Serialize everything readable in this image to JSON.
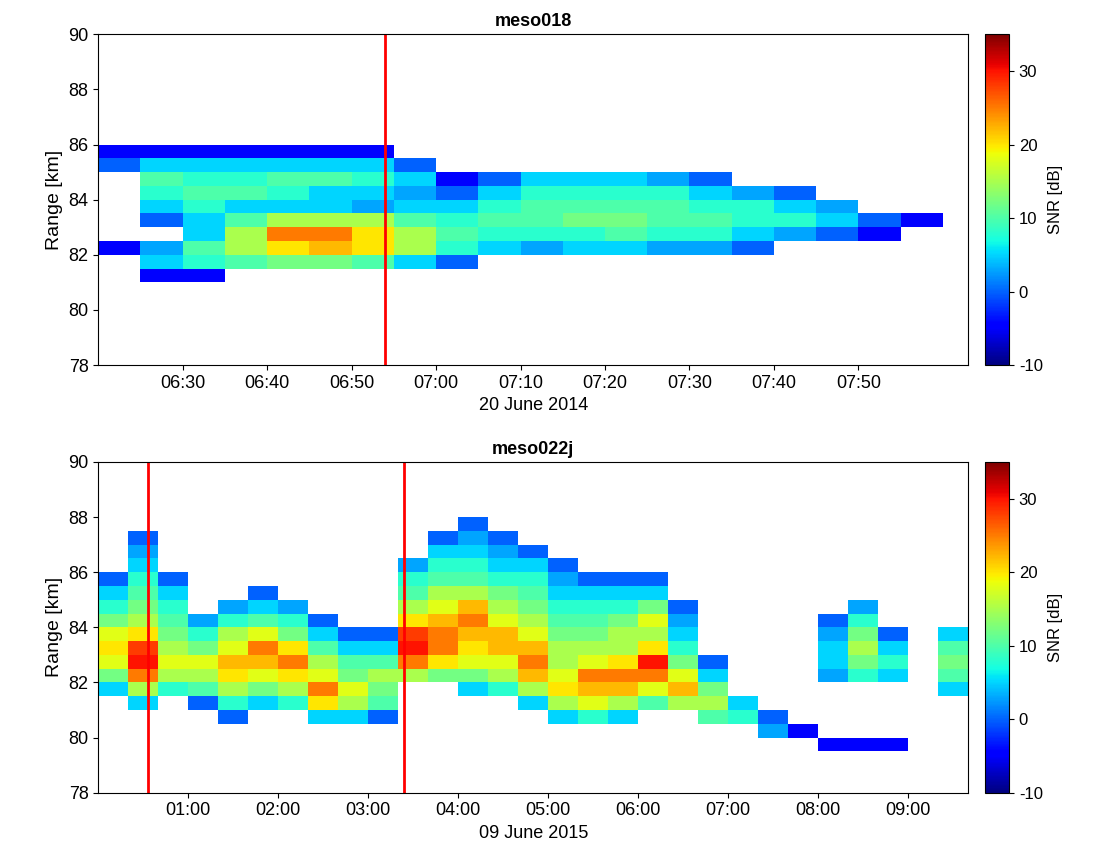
{
  "chart_data": [
    {
      "type": "heatmap",
      "title": "meso018",
      "xlabel": "20 June 2014",
      "ylabel": "Range [km]",
      "xlim": [
        380,
        483
      ],
      "ylim": [
        78,
        90
      ],
      "xticks": [
        {
          "value": 390,
          "label": "06:30"
        },
        {
          "value": 400,
          "label": "06:40"
        },
        {
          "value": 410,
          "label": "06:50"
        },
        {
          "value": 420,
          "label": "07:00"
        },
        {
          "value": 430,
          "label": "07:10"
        },
        {
          "value": 440,
          "label": "07:20"
        },
        {
          "value": 450,
          "label": "07:30"
        },
        {
          "value": 460,
          "label": "07:40"
        },
        {
          "value": 470,
          "label": "07:50"
        }
      ],
      "yticks": [
        78,
        80,
        82,
        84,
        86,
        88,
        90
      ],
      "vlines": [
        414
      ],
      "colorbar": {
        "label": "SNR [dB]",
        "lim": [
          -10,
          35
        ],
        "ticks": [
          -10,
          0,
          10,
          20,
          30
        ]
      },
      "x_edges": [
        380,
        385,
        390,
        395,
        400,
        405,
        410,
        415,
        420,
        425,
        430,
        435,
        440,
        445,
        450,
        455,
        460,
        465,
        470,
        475,
        480
      ],
      "y_edges": [
        81,
        81.5,
        82,
        82.5,
        83,
        83.5,
        84,
        84.5,
        85,
        85.5,
        86,
        86.5
      ],
      "cells": [
        [
          null,
          null,
          -5,
          null,
          null,
          null,
          null,
          null,
          0,
          -5,
          null
        ],
        [
          -5,
          5,
          3,
          null,
          0,
          5,
          8,
          10,
          5,
          -5,
          null
        ],
        [
          -5,
          8,
          10,
          5,
          5,
          8,
          10,
          8,
          5,
          -5,
          null
        ],
        [
          null,
          10,
          15,
          15,
          10,
          5,
          10,
          8,
          5,
          -5,
          null
        ],
        [
          null,
          12,
          20,
          25,
          15,
          5,
          8,
          10,
          5,
          -5,
          null
        ],
        [
          null,
          12,
          22,
          25,
          15,
          5,
          5,
          10,
          5,
          -5,
          null
        ],
        [
          null,
          10,
          20,
          20,
          15,
          3,
          5,
          8,
          5,
          -5,
          null
        ],
        [
          null,
          5,
          15,
          15,
          10,
          5,
          3,
          5,
          0,
          null,
          null
        ],
        [
          null,
          0,
          8,
          10,
          8,
          5,
          0,
          -5,
          null,
          null,
          null
        ],
        [
          null,
          null,
          5,
          8,
          10,
          8,
          5,
          0,
          null,
          null,
          null
        ],
        [
          null,
          null,
          3,
          8,
          10,
          10,
          8,
          5,
          null,
          null,
          null
        ],
        [
          null,
          null,
          5,
          8,
          12,
          10,
          8,
          5,
          null,
          null,
          null
        ],
        [
          null,
          null,
          5,
          10,
          12,
          10,
          8,
          5,
          null,
          null,
          null
        ],
        [
          null,
          null,
          3,
          8,
          10,
          10,
          8,
          3,
          null,
          null,
          null
        ],
        [
          null,
          null,
          3,
          8,
          10,
          8,
          5,
          0,
          null,
          null,
          null
        ],
        [
          null,
          null,
          0,
          5,
          8,
          8,
          3,
          null,
          null,
          null,
          null
        ],
        [
          null,
          null,
          null,
          3,
          8,
          5,
          0,
          null,
          null,
          null,
          null
        ],
        [
          null,
          null,
          null,
          0,
          5,
          3,
          null,
          null,
          null,
          null,
          null
        ],
        [
          null,
          null,
          null,
          -5,
          0,
          null,
          null,
          null,
          null,
          null,
          null
        ],
        [
          null,
          null,
          null,
          null,
          -5,
          null,
          null,
          null,
          null,
          null,
          null
        ]
      ]
    },
    {
      "type": "heatmap",
      "title": "meso022j",
      "xlabel": "09 June 2015",
      "ylabel": "Range [km]",
      "xlim": [
        0,
        580
      ],
      "ylim": [
        78,
        90
      ],
      "xticks": [
        {
          "value": 60,
          "label": "01:00"
        },
        {
          "value": 120,
          "label": "02:00"
        },
        {
          "value": 180,
          "label": "03:00"
        },
        {
          "value": 240,
          "label": "04:00"
        },
        {
          "value": 300,
          "label": "05:00"
        },
        {
          "value": 360,
          "label": "06:00"
        },
        {
          "value": 420,
          "label": "07:00"
        },
        {
          "value": 480,
          "label": "08:00"
        },
        {
          "value": 540,
          "label": "09:00"
        }
      ],
      "yticks": [
        78,
        80,
        82,
        84,
        86,
        88,
        90
      ],
      "vlines": [
        33,
        204
      ],
      "colorbar": {
        "label": "SNR [dB]",
        "lim": [
          -10,
          35
        ],
        "ticks": [
          -10,
          0,
          10,
          20,
          30
        ]
      },
      "x_edges": [
        0,
        20,
        40,
        60,
        80,
        100,
        120,
        140,
        160,
        180,
        200,
        220,
        240,
        260,
        280,
        300,
        320,
        340,
        360,
        380,
        400,
        420,
        440,
        460,
        480,
        500,
        520,
        540,
        560,
        580
      ],
      "y_edges": [
        79.5,
        80,
        80.5,
        81,
        81.5,
        82,
        82.5,
        83,
        83.5,
        84,
        84.5,
        85,
        85.5,
        86,
        86.5,
        87,
        87.5,
        88,
        88.5
      ],
      "cells": [
        [
          null,
          null,
          null,
          null,
          5,
          12,
          18,
          20,
          18,
          12,
          8,
          5,
          0,
          null,
          null,
          null,
          null,
          null
        ],
        [
          null,
          null,
          null,
          5,
          15,
          25,
          30,
          28,
          20,
          15,
          12,
          10,
          8,
          5,
          3,
          0,
          null,
          null
        ],
        [
          null,
          null,
          null,
          null,
          8,
          15,
          18,
          15,
          12,
          10,
          8,
          5,
          0,
          null,
          null,
          null,
          null,
          null
        ],
        [
          null,
          null,
          null,
          0,
          10,
          15,
          18,
          12,
          8,
          3,
          null,
          null,
          null,
          null,
          null,
          null,
          null,
          null
        ],
        [
          null,
          null,
          0,
          8,
          15,
          20,
          22,
          18,
          15,
          8,
          3,
          null,
          null,
          null,
          null,
          null,
          null,
          null
        ],
        [
          null,
          null,
          null,
          5,
          12,
          18,
          22,
          25,
          18,
          10,
          5,
          0,
          null,
          null,
          null,
          null,
          null,
          null
        ],
        [
          null,
          null,
          null,
          8,
          15,
          20,
          25,
          20,
          12,
          8,
          3,
          null,
          null,
          null,
          null,
          null,
          null,
          null
        ],
        [
          null,
          null,
          5,
          20,
          25,
          18,
          15,
          10,
          5,
          0,
          null,
          null,
          null,
          null,
          null,
          null,
          null,
          null
        ],
        [
          null,
          null,
          5,
          15,
          18,
          12,
          10,
          5,
          0,
          null,
          null,
          null,
          null,
          null,
          null,
          null,
          null,
          null
        ],
        [
          null,
          null,
          0,
          10,
          12,
          15,
          10,
          5,
          0,
          null,
          null,
          null,
          null,
          null,
          null,
          null,
          null,
          null
        ],
        [
          null,
          null,
          null,
          null,
          null,
          15,
          25,
          30,
          28,
          20,
          15,
          10,
          8,
          3,
          null,
          null,
          null,
          null
        ],
        [
          null,
          null,
          null,
          null,
          null,
          12,
          20,
          25,
          25,
          22,
          18,
          15,
          10,
          8,
          5,
          0,
          null,
          null
        ],
        [
          null,
          null,
          null,
          null,
          5,
          12,
          18,
          20,
          22,
          25,
          22,
          15,
          10,
          8,
          5,
          3,
          0,
          null
        ],
        [
          null,
          null,
          null,
          null,
          8,
          15,
          18,
          22,
          22,
          18,
          15,
          12,
          8,
          5,
          3,
          0,
          null,
          null
        ],
        [
          null,
          null,
          null,
          5,
          15,
          22,
          25,
          22,
          18,
          15,
          12,
          10,
          8,
          5,
          0,
          null,
          null,
          null
        ],
        [
          null,
          null,
          5,
          15,
          20,
          18,
          15,
          15,
          12,
          10,
          8,
          5,
          3,
          0,
          null,
          null,
          null,
          null
        ],
        [
          null,
          null,
          8,
          18,
          22,
          25,
          18,
          15,
          12,
          10,
          8,
          5,
          0,
          null,
          null,
          null,
          null,
          null
        ],
        [
          null,
          null,
          5,
          15,
          22,
          25,
          20,
          15,
          15,
          12,
          8,
          5,
          0,
          null,
          null,
          null,
          null,
          null
        ],
        [
          null,
          null,
          null,
          10,
          18,
          25,
          30,
          20,
          15,
          18,
          12,
          5,
          0,
          null,
          null,
          null,
          null,
          null
        ],
        [
          null,
          null,
          null,
          15,
          22,
          18,
          12,
          8,
          5,
          3,
          0,
          null,
          null,
          null,
          null,
          null,
          null,
          null
        ],
        [
          null,
          null,
          10,
          15,
          12,
          5,
          0,
          null,
          null,
          null,
          null,
          null,
          null,
          null,
          null,
          null,
          null,
          null
        ],
        [
          null,
          null,
          8,
          5,
          null,
          null,
          null,
          null,
          null,
          null,
          null,
          null,
          null,
          null,
          null,
          null,
          null,
          null
        ],
        [
          null,
          3,
          0,
          null,
          null,
          null,
          null,
          null,
          null,
          null,
          null,
          null,
          null,
          null,
          null,
          null,
          null,
          null
        ],
        [
          null,
          -5,
          null,
          null,
          null,
          null,
          null,
          null,
          null,
          null,
          null,
          null,
          null,
          null,
          null,
          null,
          null,
          null
        ],
        [
          -5,
          null,
          null,
          null,
          null,
          3,
          5,
          5,
          3,
          0,
          null,
          null,
          null,
          null,
          null,
          null,
          null,
          null
        ],
        [
          -5,
          null,
          null,
          null,
          null,
          8,
          12,
          15,
          12,
          8,
          3,
          null,
          null,
          null,
          null,
          null,
          null,
          null
        ],
        [
          -5,
          null,
          null,
          null,
          null,
          5,
          8,
          5,
          0,
          null,
          null,
          null,
          null,
          null,
          null,
          null,
          null,
          null
        ],
        [
          null,
          null,
          null,
          null,
          null,
          null,
          null,
          null,
          null,
          null,
          null,
          null,
          null,
          null,
          null,
          null,
          null,
          null
        ],
        [
          null,
          null,
          null,
          null,
          5,
          10,
          12,
          10,
          5,
          null,
          null,
          null,
          null,
          null,
          null,
          null,
          null,
          null
        ]
      ]
    }
  ]
}
